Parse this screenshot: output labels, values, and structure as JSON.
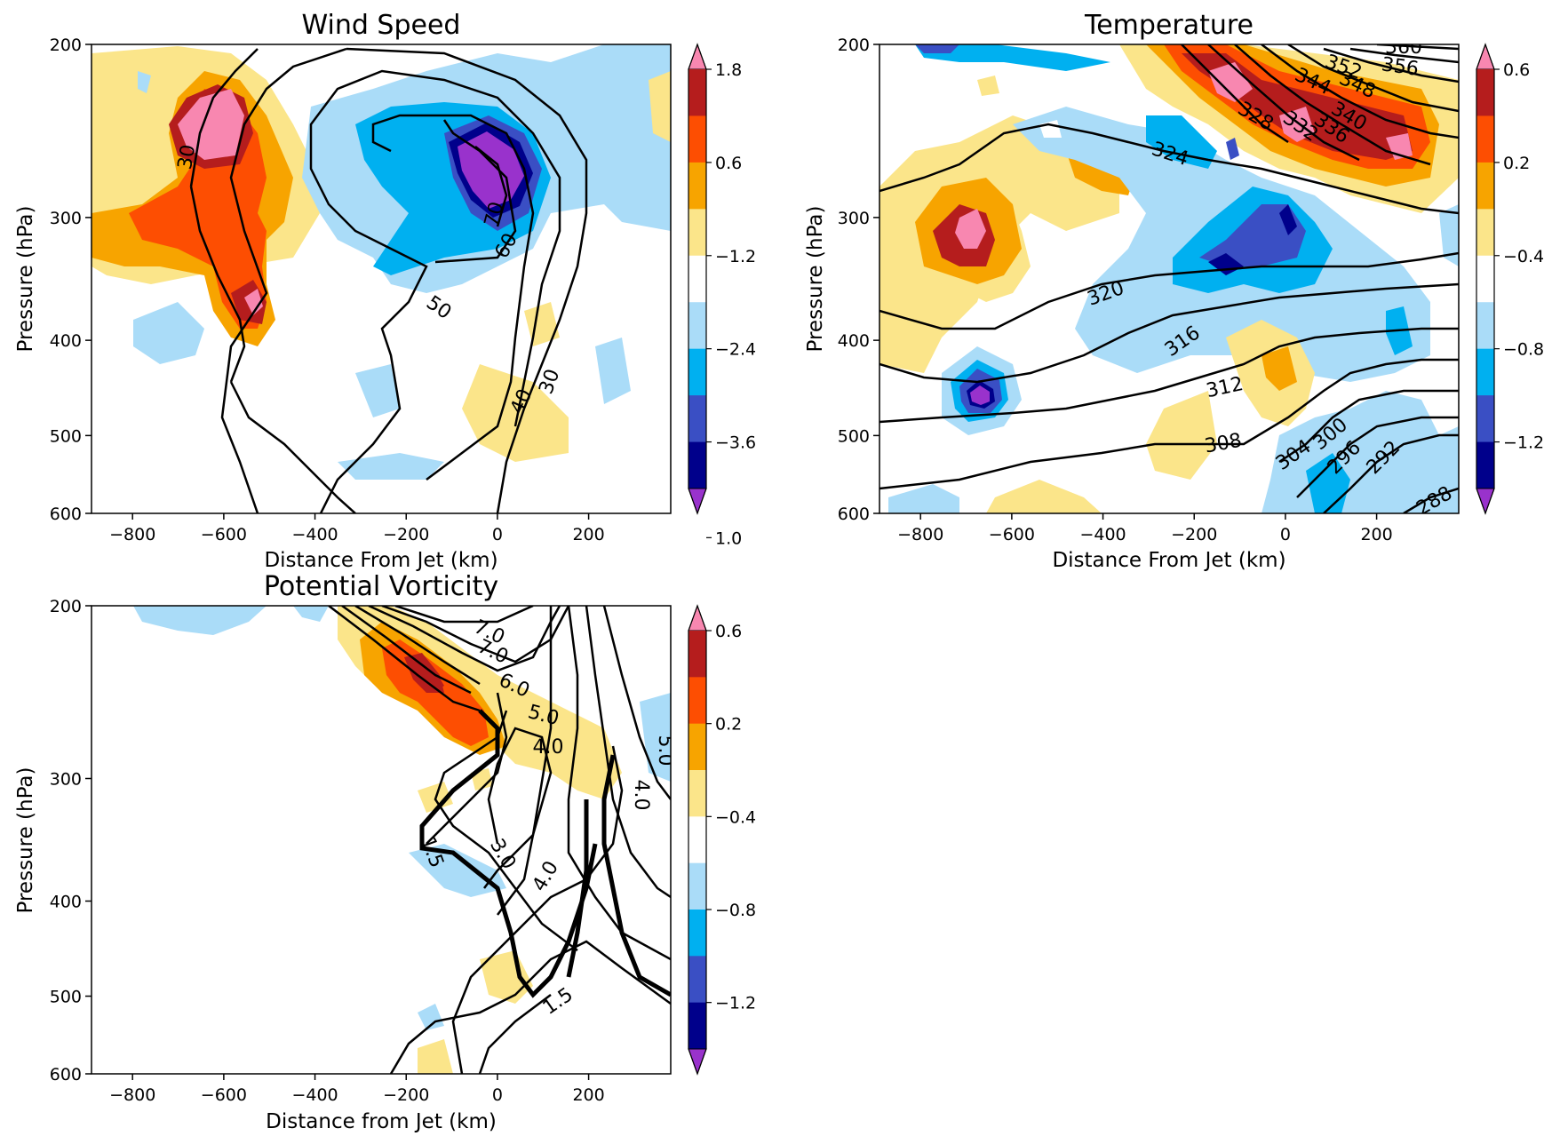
{
  "chart_data": [
    {
      "type": "contour",
      "title": "Wind Speed",
      "xlabel": "Distance From Jet (km)",
      "ylabel": "Pressure (hPa)",
      "xlim": [
        -890,
        380
      ],
      "ylim": [
        600,
        200
      ],
      "y_scale": "log",
      "x_ticks": [
        "−800",
        "−600",
        "−400",
        "−200",
        "0",
        "200"
      ],
      "y_ticks": [
        "200",
        "300",
        "400",
        "500",
        "600"
      ],
      "colorbar": {
        "levels": [
          "−3.6",
          "−2.4",
          "−1.2",
          "0.6",
          "1.8",
          "3.0"
        ],
        "colors": [
          "#9932cc",
          "#00008b",
          "#3a4fc4",
          "#00b0f0",
          "#aadcf8",
          "#ffffff",
          "#fbe58a",
          "#f7a400",
          "#fd4e02",
          "#b51d1d",
          "#f887b0"
        ]
      },
      "contour_labels": [
        "30",
        "50",
        "40",
        "30",
        "60",
        "70"
      ],
      "contour_values": [
        30,
        40,
        50,
        60,
        70
      ]
    },
    {
      "type": "contour",
      "title": "Temperature",
      "xlabel": "Distance From Jet (km)",
      "ylabel": "Pressure (hPa)",
      "xlim": [
        -890,
        380
      ],
      "ylim": [
        600,
        200
      ],
      "y_scale": "log",
      "x_ticks": [
        "−800",
        "−600",
        "−400",
        "−200",
        "0",
        "200"
      ],
      "y_ticks": [
        "200",
        "300",
        "400",
        "500",
        "600"
      ],
      "colorbar": {
        "levels": [
          "−1.2",
          "−0.8",
          "−0.4",
          "0.2",
          "0.6",
          "1.0"
        ],
        "colors": [
          "#9932cc",
          "#00008b",
          "#3a4fc4",
          "#00b0f0",
          "#aadcf8",
          "#ffffff",
          "#fbe58a",
          "#f7a400",
          "#fd4e02",
          "#b51d1d",
          "#f887b0"
        ]
      },
      "contour_labels": [
        "360",
        "356",
        "352",
        "348",
        "344",
        "340",
        "336",
        "332",
        "328",
        "324",
        "320",
        "316",
        "312",
        "308",
        "304",
        "300",
        "296",
        "292",
        "288"
      ],
      "contour_values": [
        288,
        292,
        296,
        300,
        304,
        308,
        312,
        316,
        320,
        324,
        328,
        332,
        336,
        340,
        344,
        348,
        352,
        356,
        360
      ]
    },
    {
      "type": "contour",
      "title": "Potential Vorticity",
      "xlabel": "Distance from Jet (km)",
      "ylabel": "Pressure (hPa)",
      "xlim": [
        -890,
        380
      ],
      "ylim": [
        600,
        200
      ],
      "y_scale": "log",
      "x_ticks": [
        "−800",
        "−600",
        "−400",
        "−200",
        "0",
        "200"
      ],
      "y_ticks": [
        "200",
        "300",
        "400",
        "500",
        "600"
      ],
      "colorbar": {
        "levels": [
          "−1.2",
          "−0.8",
          "−0.4",
          "0.2",
          "0.6",
          "1.0"
        ],
        "colors": [
          "#9932cc",
          "#00008b",
          "#3a4fc4",
          "#00b0f0",
          "#aadcf8",
          "#ffffff",
          "#fbe58a",
          "#f7a400",
          "#fd4e02",
          "#b51d1d",
          "#f887b0"
        ]
      },
      "contour_labels": [
        "7.0",
        "7.0",
        "6.0",
        "5.0",
        "4.0",
        "5.0",
        "1.5",
        "3.0",
        "4.0",
        "4.0",
        "1.5"
      ],
      "contour_values": [
        1.5,
        3.0,
        4.0,
        5.0,
        6.0,
        7.0
      ]
    }
  ]
}
